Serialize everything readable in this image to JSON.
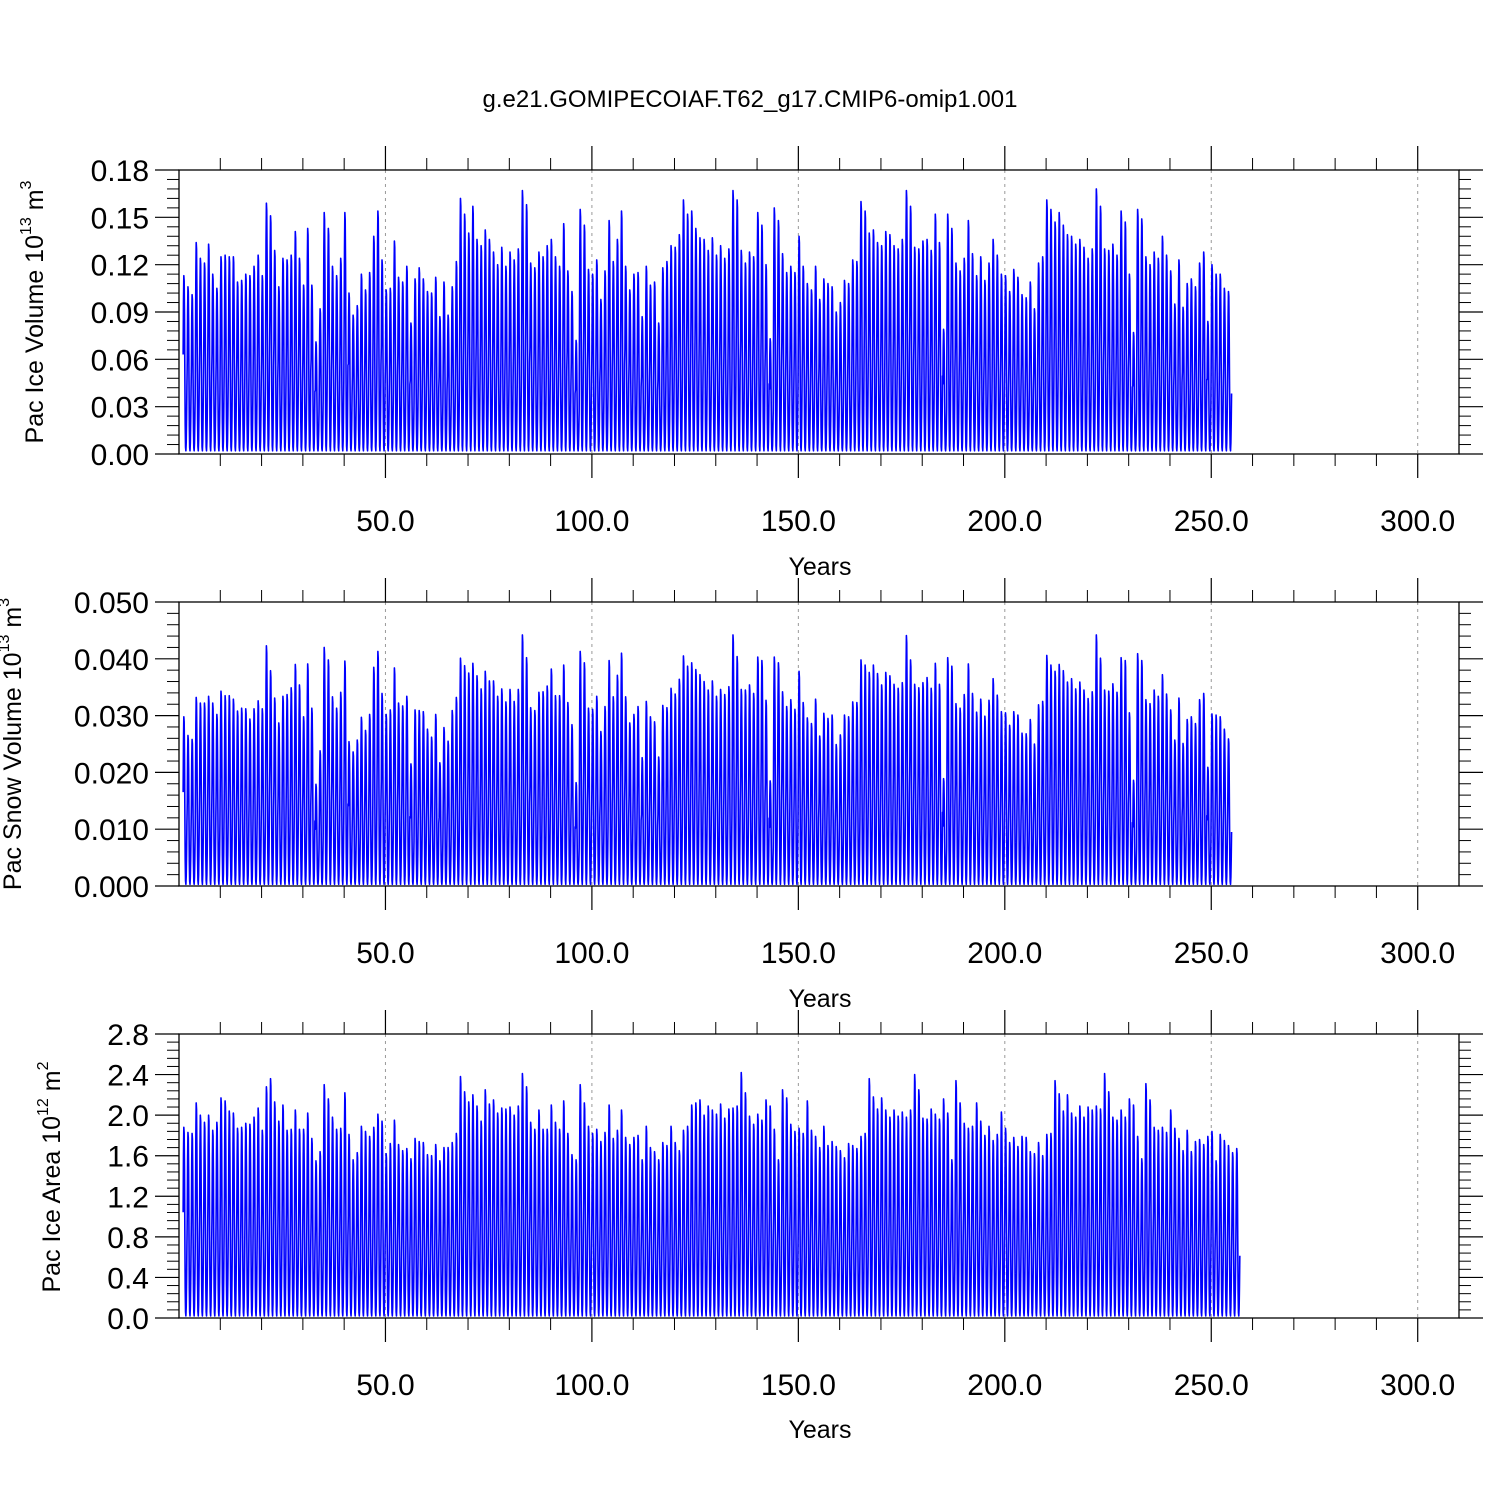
{
  "figure_title": "g.e21.GOMIPECOIAF.T62_g17.CMIP6-omip1.001",
  "colors": {
    "series": "#0000ff",
    "axes": "#000000",
    "reference_lines": "#999999"
  },
  "chart_data": [
    {
      "type": "line",
      "ylabel_main": "Pac Ice Volume 10",
      "ylabel_exp": "13",
      "ylabel_unit": "m",
      "ylabel_unit_exp": "3",
      "xlabel": "Years",
      "xlim": [
        0,
        310
      ],
      "ylim": [
        0,
        0.18
      ],
      "y_ticks": [
        0.0,
        0.03,
        0.06,
        0.09,
        0.12,
        0.15,
        0.18
      ],
      "y_tick_labels": [
        "0.00",
        "0.03",
        "0.06",
        "0.09",
        "0.12",
        "0.15",
        "0.18"
      ],
      "x_ticks": [
        50,
        100,
        150,
        200,
        250,
        300
      ],
      "x_tick_labels": [
        "50.0",
        "100.0",
        "150.0",
        "200.0",
        "250.0",
        "300.0"
      ],
      "reference_lines_x": [
        50,
        100,
        150,
        200,
        250,
        300
      ],
      "series": [
        {
          "cycle": "monthly",
          "annual_minimum": 0.002,
          "annual_maxima": [
            0.113,
            0.106,
            0.101,
            0.134,
            0.124,
            0.121,
            0.133,
            0.114,
            0.105,
            0.125,
            0.126,
            0.125,
            0.125,
            0.109,
            0.11,
            0.114,
            0.113,
            0.119,
            0.126,
            0.113,
            0.159,
            0.151,
            0.129,
            0.106,
            0.124,
            0.123,
            0.126,
            0.141,
            0.124,
            0.107,
            0.143,
            0.107,
            0.071,
            0.092,
            0.153,
            0.143,
            0.119,
            0.113,
            0.124,
            0.153,
            0.102,
            0.088,
            0.094,
            0.114,
            0.104,
            0.115,
            0.138,
            0.154,
            0.123,
            0.104,
            0.105,
            0.135,
            0.112,
            0.109,
            0.119,
            0.083,
            0.111,
            0.118,
            0.111,
            0.103,
            0.102,
            0.112,
            0.087,
            0.109,
            0.088,
            0.106,
            0.122,
            0.162,
            0.152,
            0.14,
            0.157,
            0.136,
            0.132,
            0.142,
            0.136,
            0.128,
            0.12,
            0.131,
            0.119,
            0.128,
            0.123,
            0.13,
            0.167,
            0.158,
            0.121,
            0.118,
            0.128,
            0.125,
            0.132,
            0.136,
            0.125,
            0.119,
            0.146,
            0.116,
            0.103,
            0.072,
            0.155,
            0.145,
            0.117,
            0.114,
            0.123,
            0.098,
            0.116,
            0.148,
            0.122,
            0.136,
            0.154,
            0.119,
            0.104,
            0.114,
            0.115,
            0.087,
            0.119,
            0.107,
            0.109,
            0.083,
            0.118,
            0.122,
            0.132,
            0.131,
            0.139,
            0.161,
            0.152,
            0.154,
            0.143,
            0.137,
            0.136,
            0.129,
            0.137,
            0.126,
            0.132,
            0.124,
            0.13,
            0.167,
            0.161,
            0.129,
            0.121,
            0.128,
            0.125,
            0.153,
            0.145,
            0.12,
            0.073,
            0.156,
            0.148,
            0.127,
            0.115,
            0.119,
            0.115,
            0.138,
            0.119,
            0.108,
            0.104,
            0.119,
            0.098,
            0.111,
            0.108,
            0.106,
            0.09,
            0.096,
            0.11,
            0.108,
            0.123,
            0.122,
            0.16,
            0.154,
            0.14,
            0.142,
            0.134,
            0.132,
            0.141,
            0.139,
            0.132,
            0.13,
            0.136,
            0.167,
            0.157,
            0.131,
            0.13,
            0.135,
            0.136,
            0.129,
            0.152,
            0.134,
            0.079,
            0.152,
            0.143,
            0.121,
            0.116,
            0.124,
            0.148,
            0.127,
            0.113,
            0.125,
            0.11,
            0.121,
            0.136,
            0.126,
            0.114,
            0.113,
            0.103,
            0.117,
            0.112,
            0.101,
            0.099,
            0.109,
            0.092,
            0.121,
            0.125,
            0.161,
            0.155,
            0.147,
            0.153,
            0.145,
            0.139,
            0.138,
            0.133,
            0.136,
            0.131,
            0.124,
            0.13,
            0.168,
            0.157,
            0.13,
            0.129,
            0.133,
            0.126,
            0.154,
            0.147,
            0.114,
            0.077,
            0.155,
            0.149,
            0.125,
            0.12,
            0.128,
            0.124,
            0.138,
            0.126,
            0.116,
            0.095,
            0.123,
            0.093,
            0.108,
            0.111,
            0.106,
            0.121,
            0.128,
            0.084,
            0.12,
            0.114,
            0.114,
            0.105,
            0.103
          ]
        }
      ]
    },
    {
      "type": "line",
      "ylabel_main": "Pac Snow Volume 10",
      "ylabel_exp": "13",
      "ylabel_unit": "m",
      "ylabel_unit_exp": "3",
      "xlabel": "Years",
      "xlim": [
        0,
        310
      ],
      "ylim": [
        0,
        0.05
      ],
      "y_ticks": [
        0.0,
        0.01,
        0.02,
        0.03,
        0.04,
        0.05
      ],
      "y_tick_labels": [
        "0.000",
        "0.010",
        "0.020",
        "0.030",
        "0.040",
        "0.050"
      ],
      "x_ticks": [
        50,
        100,
        150,
        200,
        250,
        300
      ],
      "x_tick_labels": [
        "50.0",
        "100.0",
        "150.0",
        "200.0",
        "250.0",
        "300.0"
      ],
      "reference_lines_x": [
        50,
        100,
        150,
        200,
        250,
        300
      ],
      "series": [
        {
          "cycle": "monthly",
          "annual_minimum": 0.0003,
          "annual_maxima": [
            0.0298,
            0.0265,
            0.0258,
            0.0332,
            0.0322,
            0.0322,
            0.0334,
            0.0322,
            0.0302,
            0.0343,
            0.0335,
            0.0335,
            0.0329,
            0.0308,
            0.0313,
            0.0312,
            0.0294,
            0.0312,
            0.0326,
            0.0312,
            0.0423,
            0.0379,
            0.0331,
            0.0287,
            0.0334,
            0.0337,
            0.0349,
            0.039,
            0.0354,
            0.0298,
            0.0391,
            0.0313,
            0.0179,
            0.0238,
            0.042,
            0.0398,
            0.0333,
            0.0313,
            0.0341,
            0.0396,
            0.0254,
            0.0236,
            0.0257,
            0.0297,
            0.0274,
            0.0302,
            0.0385,
            0.0413,
            0.0339,
            0.0302,
            0.031,
            0.0384,
            0.0322,
            0.0317,
            0.0334,
            0.0215,
            0.031,
            0.0309,
            0.0307,
            0.0276,
            0.0262,
            0.0302,
            0.0217,
            0.0279,
            0.0255,
            0.0309,
            0.0332,
            0.0401,
            0.0388,
            0.0375,
            0.0392,
            0.037,
            0.0347,
            0.0378,
            0.0361,
            0.0361,
            0.0334,
            0.0347,
            0.0324,
            0.0346,
            0.0325,
            0.0346,
            0.0442,
            0.0402,
            0.0314,
            0.0309,
            0.0341,
            0.0342,
            0.0352,
            0.0382,
            0.0335,
            0.0335,
            0.0389,
            0.0323,
            0.0284,
            0.0182,
            0.0413,
            0.0393,
            0.0313,
            0.0311,
            0.0334,
            0.0272,
            0.0316,
            0.0397,
            0.0333,
            0.0371,
            0.041,
            0.0333,
            0.0287,
            0.0302,
            0.0316,
            0.0226,
            0.0325,
            0.0298,
            0.0289,
            0.0227,
            0.0318,
            0.0314,
            0.0348,
            0.0338,
            0.0364,
            0.0405,
            0.0387,
            0.0393,
            0.0381,
            0.0372,
            0.036,
            0.0345,
            0.0361,
            0.0334,
            0.0346,
            0.0337,
            0.0351,
            0.0442,
            0.0404,
            0.0346,
            0.0345,
            0.0354,
            0.0339,
            0.0403,
            0.0397,
            0.0327,
            0.0185,
            0.0403,
            0.0393,
            0.0342,
            0.0316,
            0.0328,
            0.0311,
            0.0378,
            0.0323,
            0.0296,
            0.0286,
            0.0329,
            0.0264,
            0.0304,
            0.0295,
            0.0301,
            0.0249,
            0.0266,
            0.0301,
            0.0298,
            0.0324,
            0.0323,
            0.0398,
            0.0389,
            0.0376,
            0.0389,
            0.0374,
            0.0354,
            0.0376,
            0.037,
            0.0355,
            0.0348,
            0.0358,
            0.0441,
            0.0398,
            0.0355,
            0.0349,
            0.0358,
            0.0367,
            0.0348,
            0.0392,
            0.0355,
            0.0189,
            0.0402,
            0.0387,
            0.0321,
            0.0313,
            0.0337,
            0.0391,
            0.0339,
            0.0306,
            0.0329,
            0.0299,
            0.0327,
            0.0365,
            0.0336,
            0.0307,
            0.0305,
            0.0283,
            0.0307,
            0.0301,
            0.0269,
            0.0268,
            0.0293,
            0.025,
            0.0319,
            0.0325,
            0.0406,
            0.0389,
            0.0378,
            0.039,
            0.0379,
            0.0359,
            0.0365,
            0.0347,
            0.0359,
            0.0345,
            0.033,
            0.0342,
            0.0442,
            0.0401,
            0.0345,
            0.0343,
            0.0356,
            0.0341,
            0.0402,
            0.0397,
            0.0305,
            0.0186,
            0.0409,
            0.0397,
            0.0328,
            0.0321,
            0.0345,
            0.0334,
            0.0372,
            0.0338,
            0.031,
            0.0257,
            0.0331,
            0.0251,
            0.0293,
            0.0298,
            0.0286,
            0.0328,
            0.0339,
            0.0209,
            0.0303,
            0.0301,
            0.0298,
            0.0276,
            0.0259
          ]
        }
      ]
    },
    {
      "type": "line",
      "ylabel_main": "Pac Ice Area 10",
      "ylabel_exp": "12",
      "ylabel_unit": "m",
      "ylabel_unit_exp": "2",
      "xlabel": "Years",
      "xlim": [
        0,
        310
      ],
      "ylim": [
        0,
        2.8
      ],
      "y_ticks": [
        0.0,
        0.4,
        0.8,
        1.2,
        1.6,
        2.0,
        2.4,
        2.8
      ],
      "y_tick_labels": [
        "0.0",
        "0.4",
        "0.8",
        "1.2",
        "1.6",
        "2.0",
        "2.4",
        "2.8"
      ],
      "x_ticks": [
        50,
        100,
        150,
        200,
        250,
        300
      ],
      "x_tick_labels": [
        "50.0",
        "100.0",
        "150.0",
        "200.0",
        "250.0",
        "300.0"
      ],
      "reference_lines_x": [
        50,
        100,
        150,
        200,
        250,
        300
      ],
      "series": [
        {
          "cycle": "monthly",
          "annual_minimum": 0.02,
          "annual_maxima": [
            1.88,
            1.83,
            1.82,
            2.12,
            2.0,
            1.93,
            2.0,
            1.85,
            1.93,
            2.17,
            2.14,
            2.04,
            2.02,
            1.87,
            1.88,
            1.92,
            1.91,
            1.98,
            2.07,
            1.85,
            2.28,
            2.36,
            2.13,
            1.94,
            2.1,
            1.85,
            1.86,
            2.05,
            1.86,
            1.86,
            2.02,
            1.77,
            1.55,
            1.64,
            2.3,
            2.16,
            1.98,
            1.86,
            1.87,
            2.22,
            1.81,
            1.56,
            1.63,
            1.89,
            1.84,
            1.79,
            1.88,
            2.01,
            1.94,
            1.62,
            1.72,
            1.95,
            1.71,
            1.65,
            1.67,
            1.57,
            1.77,
            1.74,
            1.73,
            1.61,
            1.6,
            1.71,
            1.55,
            1.68,
            1.68,
            1.73,
            1.82,
            2.38,
            2.23,
            2.13,
            2.2,
            2.09,
            1.94,
            2.25,
            2.11,
            2.15,
            2.02,
            2.07,
            2.06,
            2.08,
            2.0,
            2.09,
            2.41,
            2.28,
            1.93,
            1.86,
            2.05,
            1.86,
            1.86,
            2.1,
            1.93,
            1.86,
            2.14,
            1.82,
            1.61,
            1.56,
            2.3,
            2.12,
            1.89,
            1.82,
            1.86,
            1.74,
            1.83,
            2.1,
            1.77,
            1.85,
            2.05,
            1.78,
            1.71,
            1.78,
            1.8,
            1.56,
            1.89,
            1.68,
            1.64,
            1.56,
            1.73,
            1.7,
            1.89,
            1.73,
            1.65,
            1.85,
            1.89,
            2.1,
            2.12,
            2.15,
            2.0,
            2.09,
            2.05,
            2.01,
            2.11,
            1.97,
            2.06,
            2.07,
            2.09,
            2.42,
            2.22,
            1.99,
            1.91,
            2.01,
            1.95,
            2.15,
            2.09,
            1.86,
            1.56,
            2.25,
            2.17,
            1.91,
            1.84,
            1.87,
            1.82,
            2.14,
            1.85,
            1.79,
            1.68,
            1.89,
            1.7,
            1.74,
            1.69,
            1.65,
            1.58,
            1.72,
            1.7,
            1.67,
            1.79,
            1.82,
            2.36,
            2.18,
            2.06,
            2.17,
            2.05,
            1.98,
            2.05,
            1.99,
            2.03,
            1.98,
            2.05,
            2.4,
            2.25,
            1.97,
            1.96,
            2.06,
            2.01,
            1.96,
            2.16,
            2.02,
            1.56,
            2.34,
            2.12,
            1.92,
            1.87,
            1.89,
            2.12,
            1.94,
            1.8,
            1.89,
            1.75,
            1.81,
            2.03,
            1.87,
            1.73,
            1.78,
            1.69,
            1.79,
            1.78,
            1.64,
            1.62,
            1.73,
            1.6,
            1.81,
            1.82,
            2.34,
            2.21,
            2.04,
            2.2,
            2.02,
            1.98,
            2.09,
            1.98,
            2.08,
            2.05,
            2.09,
            2.06,
            2.41,
            2.23,
            1.98,
            1.95,
            2.05,
            1.98,
            2.16,
            2.1,
            1.79,
            1.57,
            2.31,
            2.15,
            1.88,
            1.85,
            1.88,
            1.83,
            2.05,
            1.87,
            1.77,
            1.65,
            1.85,
            1.64,
            1.74,
            1.76,
            1.71,
            1.79,
            1.84,
            1.55,
            1.81,
            1.75,
            1.7,
            1.63,
            1.67
          ]
        }
      ]
    }
  ]
}
